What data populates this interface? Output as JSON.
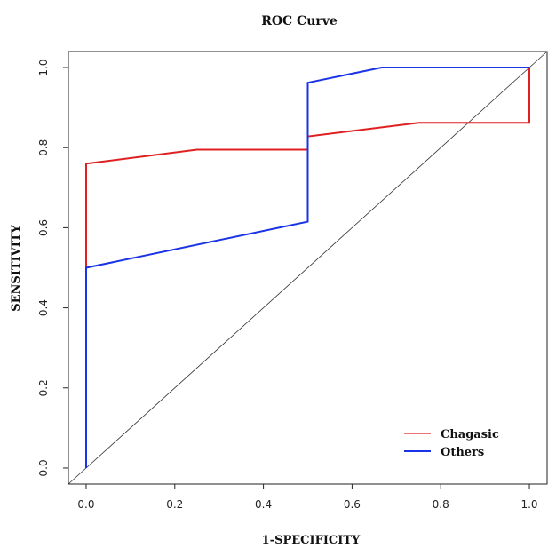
{
  "chart_data": {
    "type": "line",
    "title": "ROC Curve",
    "xlabel": "1-SPECIFICITY",
    "ylabel": "SENSITIVITY",
    "xlim": [
      -0.04,
      1.04
    ],
    "ylim": [
      -0.04,
      1.04
    ],
    "x_ticks": [
      "0.0",
      "0.2",
      "0.4",
      "0.6",
      "0.8",
      "1.0"
    ],
    "y_ticks": [
      "0.0",
      "0.2",
      "0.4",
      "0.6",
      "0.8",
      "1.0"
    ],
    "grid": false,
    "legend_position": "bottom-right",
    "reference_line": {
      "x": [
        -0.04,
        1.04
      ],
      "y": [
        -0.04,
        1.04
      ],
      "color": "#333333"
    },
    "series": [
      {
        "name": "Chagasic",
        "color": "#e02020",
        "x": [
          0.0,
          0.0,
          0.25,
          0.5,
          0.5,
          0.75,
          1.0,
          1.0
        ],
        "y": [
          0.5,
          0.76,
          0.795,
          0.795,
          0.828,
          0.862,
          0.862,
          1.0
        ]
      },
      {
        "name": "Others",
        "color": "#1a33e6",
        "x": [
          0.0,
          0.0,
          0.5,
          0.5,
          0.667,
          1.0
        ],
        "y": [
          0.0,
          0.5,
          0.615,
          0.962,
          1.0,
          1.0
        ]
      }
    ]
  }
}
